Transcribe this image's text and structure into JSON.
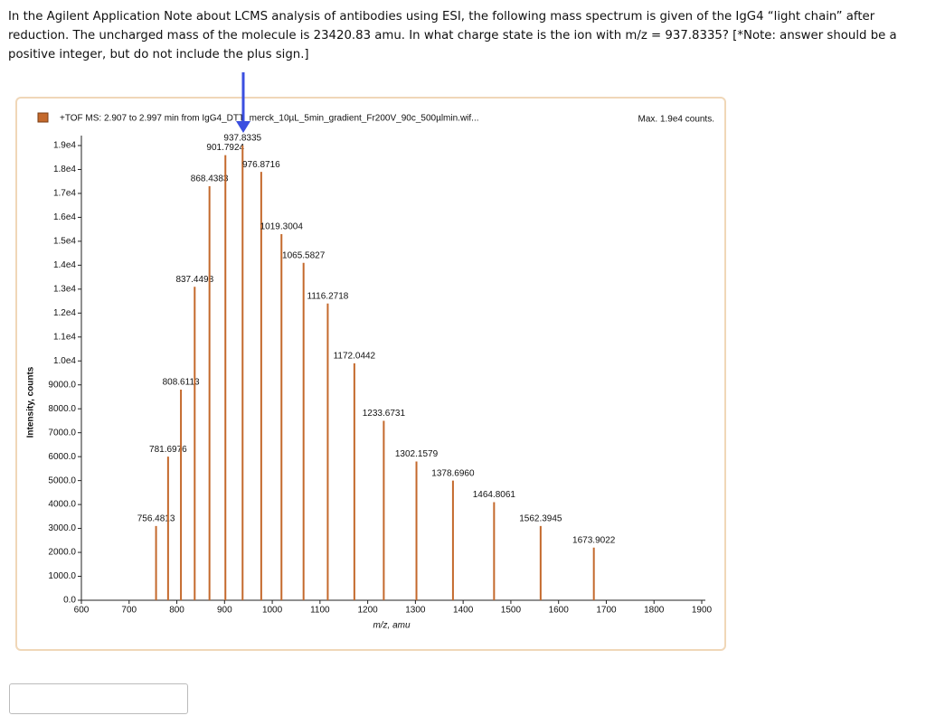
{
  "question": "In the Agilent Application Note about LCMS analysis of antibodies using ESI, the following mass spectrum is given of the IgG4 “light chain” after reduction. The uncharged mass of the molecule is 23420.83 amu. In what charge state is the ion with m/z = 937.8335? [*Note: answer should be a positive integer, but do not include the plus sign.]",
  "chart_data": {
    "type": "spectrum",
    "header": "+TOF MS: 2.907 to 2.997 min from IgG4_DTT_merck_10µL_5min_gradient_Fr200V_90c_500µlmin.wif...",
    "max_label": "Max. 1.9e4 counts.",
    "xlabel": "m/z, amu",
    "ylabel": "Intensity, counts",
    "color": "#c4692c",
    "x": [
      756.4813,
      781.6976,
      808.6113,
      837.4498,
      868.4383,
      901.7924,
      937.8335,
      976.8716,
      1019.3004,
      1065.5827,
      1116.2718,
      1172.0442,
      1233.6731,
      1302.1579,
      1378.696,
      1464.8061,
      1562.3945,
      1673.9022
    ],
    "x_labels": [
      "756.4813",
      "781.6976",
      "808.6113",
      "837.4498",
      "868.4383",
      "901.7924",
      "937.8335",
      "976.8716",
      "1019.3004",
      "1065.5827",
      "1116.2718",
      "1172.0442",
      "1233.6731",
      "1302.1579",
      "1378.6960",
      "1464.8061",
      "1562.3945",
      "1673.9022"
    ],
    "values": [
      3100,
      6000,
      8800,
      13100,
      17300,
      18600,
      19000,
      17900,
      15300,
      14100,
      12400,
      9900,
      7500,
      5800,
      5000,
      4100,
      3100,
      2200
    ],
    "xlim": [
      600,
      1900
    ],
    "xticks": [
      600,
      700,
      800,
      900,
      1000,
      1100,
      1200,
      1300,
      1400,
      1500,
      1600,
      1700,
      1800,
      1900
    ],
    "ylim": [
      0,
      19000
    ],
    "yticks": [
      {
        "value": 0,
        "label": "0.0"
      },
      {
        "value": 1000,
        "label": "1000.0"
      },
      {
        "value": 2000,
        "label": "2000.0"
      },
      {
        "value": 3000,
        "label": "3000.0"
      },
      {
        "value": 4000,
        "label": "4000.0"
      },
      {
        "value": 5000,
        "label": "5000.0"
      },
      {
        "value": 6000,
        "label": "6000.0"
      },
      {
        "value": 7000,
        "label": "7000.0"
      },
      {
        "value": 8000,
        "label": "8000.0"
      },
      {
        "value": 9000,
        "label": "9000.0"
      },
      {
        "value": 10000,
        "label": "1.0e4"
      },
      {
        "value": 11000,
        "label": "1.1e4"
      },
      {
        "value": 12000,
        "label": "1.2e4"
      },
      {
        "value": 13000,
        "label": "1.3e4"
      },
      {
        "value": 14000,
        "label": "1.4e4"
      },
      {
        "value": 15000,
        "label": "1.5e4"
      },
      {
        "value": 16000,
        "label": "1.6e4"
      },
      {
        "value": 17000,
        "label": "1.7e4"
      },
      {
        "value": 18000,
        "label": "1.8e4"
      },
      {
        "value": 19000,
        "label": "1.9e4"
      }
    ]
  }
}
